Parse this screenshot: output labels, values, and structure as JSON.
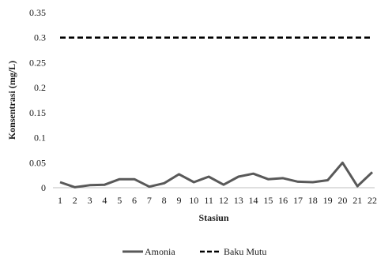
{
  "chart_data": {
    "type": "line",
    "title": "",
    "xlabel": "Stasiun",
    "ylabel": "Konsentrasi (mg/L)",
    "ylim": [
      0,
      0.35
    ],
    "yticks": [
      "0",
      "0.05",
      "0.1",
      "0.15",
      "0.2",
      "0.25",
      "0.3",
      "0.35"
    ],
    "ytick_values": [
      0,
      0.05,
      0.1,
      0.15,
      0.2,
      0.25,
      0.3,
      0.35
    ],
    "categories": [
      "1",
      "2",
      "3",
      "4",
      "5",
      "6",
      "7",
      "8",
      "9",
      "10",
      "11",
      "12",
      "13",
      "14",
      "15",
      "16",
      "17",
      "18",
      "19",
      "20",
      "21",
      "22"
    ],
    "grid": false,
    "legend_position": "bottom",
    "series": [
      {
        "name": "Amonia",
        "style": "solid",
        "color": "#595959",
        "values": [
          0.011,
          0.001,
          0.005,
          0.006,
          0.017,
          0.017,
          0.002,
          0.009,
          0.027,
          0.011,
          0.022,
          0.006,
          0.022,
          0.028,
          0.017,
          0.019,
          0.012,
          0.011,
          0.015,
          0.05,
          0.003,
          0.031
        ]
      },
      {
        "name": "Baku Mutu",
        "style": "dashed",
        "color": "#000000",
        "values": [
          0.3,
          0.3,
          0.3,
          0.3,
          0.3,
          0.3,
          0.3,
          0.3,
          0.3,
          0.3,
          0.3,
          0.3,
          0.3,
          0.3,
          0.3,
          0.3,
          0.3,
          0.3,
          0.3,
          0.3,
          0.3,
          0.3
        ]
      }
    ]
  }
}
